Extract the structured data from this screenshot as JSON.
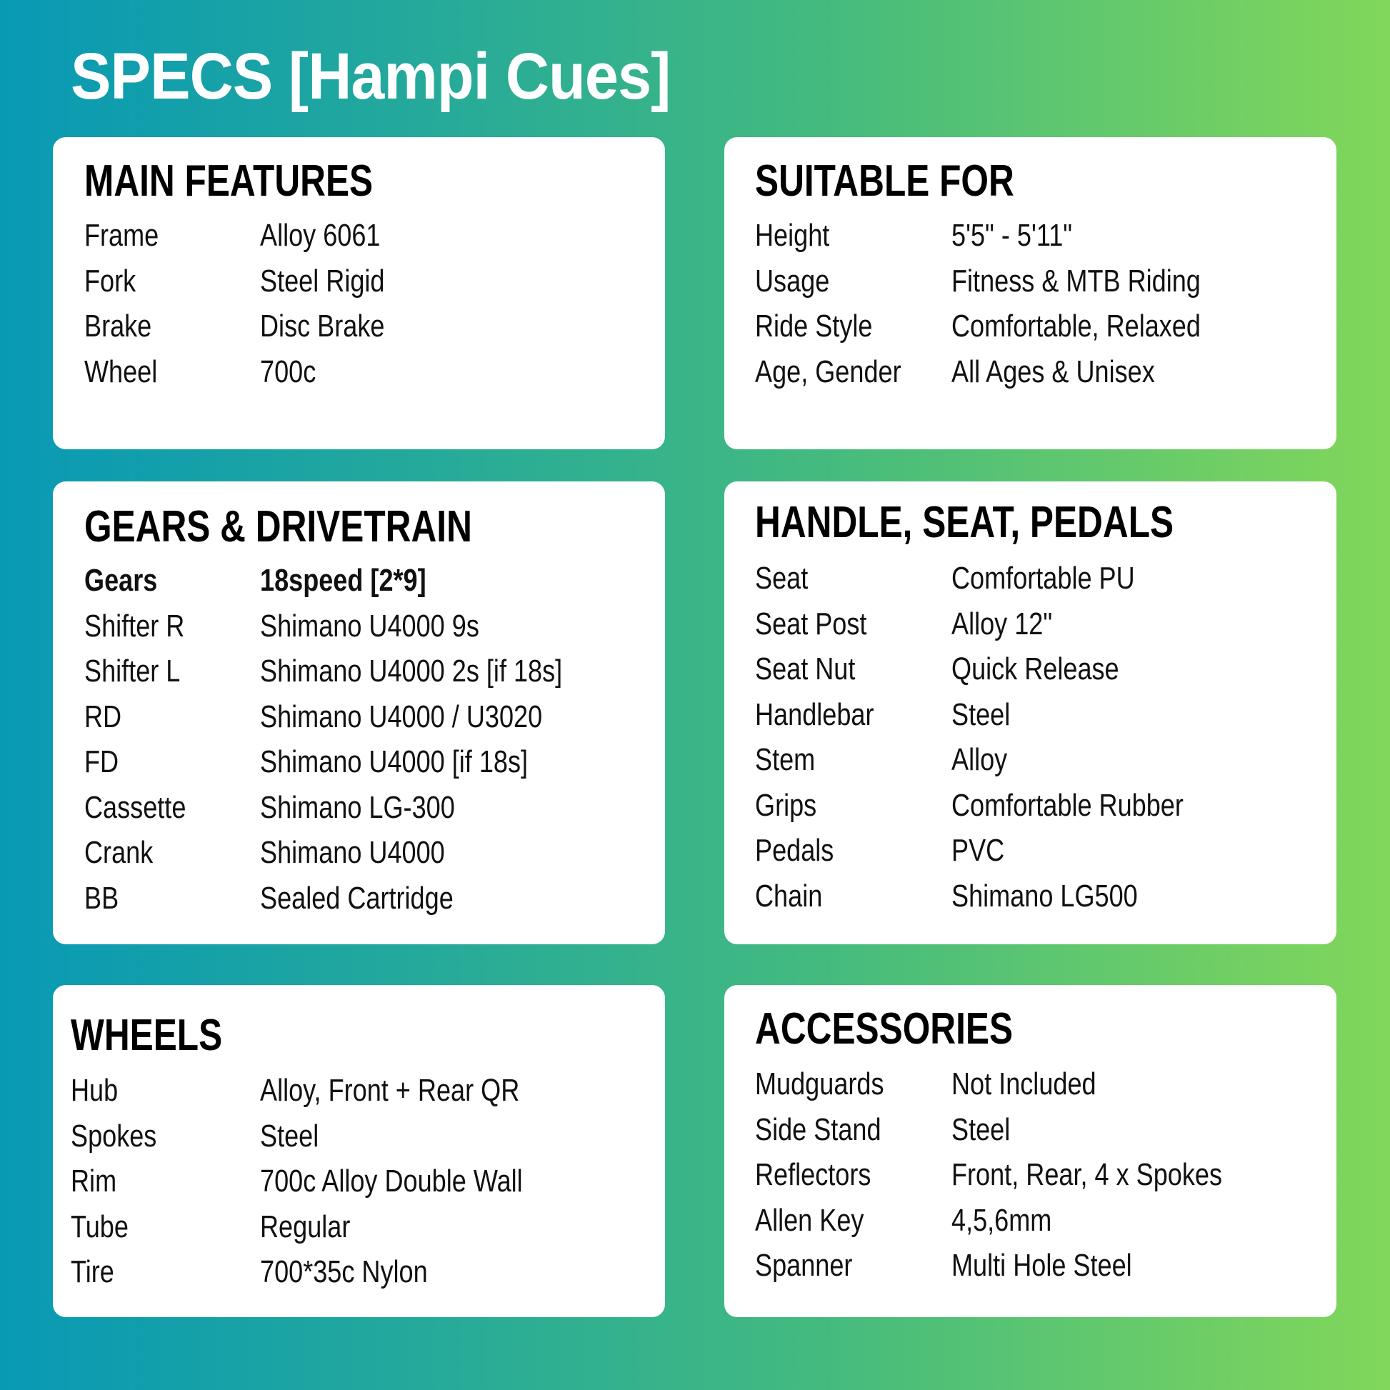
{
  "title": "SPECS [Hampi Cues]",
  "colors": {
    "gradient_left": "#0899b5",
    "gradient_right": "#82d75a",
    "card": "#ffffff"
  },
  "cards": {
    "main_features": {
      "heading": "MAIN FEATURES",
      "rows": [
        {
          "label": "Frame",
          "value": "Alloy 6061"
        },
        {
          "label": "Fork",
          "value": "Steel Rigid"
        },
        {
          "label": "Brake",
          "value": "Disc Brake"
        },
        {
          "label": "Wheel",
          "value": "700c"
        }
      ]
    },
    "suitable_for": {
      "heading": "SUITABLE FOR",
      "rows": [
        {
          "label": "Height",
          "value": "5'5\" - 5'11\""
        },
        {
          "label": "Usage",
          "value": "Fitness & MTB Riding"
        },
        {
          "label": "Ride Style",
          "value": "Comfortable, Relaxed"
        },
        {
          "label": "Age, Gender",
          "value": "All Ages & Unisex"
        }
      ]
    },
    "gears": {
      "heading": "GEARS & DRIVETRAIN",
      "rows": [
        {
          "label": "Gears",
          "value": "18speed [2*9]",
          "bold": true
        },
        {
          "label": "Shifter R",
          "value": "Shimano U4000 9s"
        },
        {
          "label": "Shifter L",
          "value": "Shimano U4000 2s [if 18s]"
        },
        {
          "label": "RD",
          "value": "Shimano U4000 / U3020"
        },
        {
          "label": "FD",
          "value": "Shimano U4000 [if 18s]"
        },
        {
          "label": "Cassette",
          "value": "Shimano LG-300"
        },
        {
          "label": "Crank",
          "value": "Shimano U4000"
        },
        {
          "label": "BB",
          "value": "Sealed Cartridge"
        }
      ]
    },
    "handle": {
      "heading": "HANDLE, SEAT, PEDALS",
      "rows": [
        {
          "label": "Seat",
          "value": "Comfortable PU"
        },
        {
          "label": "Seat Post",
          "value": "Alloy 12\""
        },
        {
          "label": "Seat Nut",
          "value": "Quick Release"
        },
        {
          "label": "Handlebar",
          "value": "Steel"
        },
        {
          "label": "Stem",
          "value": "Alloy"
        },
        {
          "label": "Grips",
          "value": "Comfortable Rubber"
        },
        {
          "label": "Pedals",
          "value": "PVC"
        },
        {
          "label": "Chain",
          "value": "Shimano LG500"
        }
      ]
    },
    "wheels": {
      "heading": "WHEELS",
      "rows": [
        {
          "label": "Hub",
          "value": "Alloy, Front + Rear QR"
        },
        {
          "label": "Spokes",
          "value": "Steel"
        },
        {
          "label": "Rim",
          "value": "700c Alloy Double Wall"
        },
        {
          "label": "Tube",
          "value": "Regular"
        },
        {
          "label": "Tire",
          "value": "700*35c Nylon"
        }
      ]
    },
    "accessories": {
      "heading": "ACCESSORIES",
      "rows": [
        {
          "label": "Mudguards",
          "value": "Not Included"
        },
        {
          "label": "Side Stand",
          "value": "Steel"
        },
        {
          "label": "Reflectors",
          "value": "Front, Rear, 4 x Spokes"
        },
        {
          "label": "Allen Key",
          "value": "4,5,6mm"
        },
        {
          "label": "Spanner",
          "value": "Multi Hole Steel"
        }
      ]
    }
  }
}
